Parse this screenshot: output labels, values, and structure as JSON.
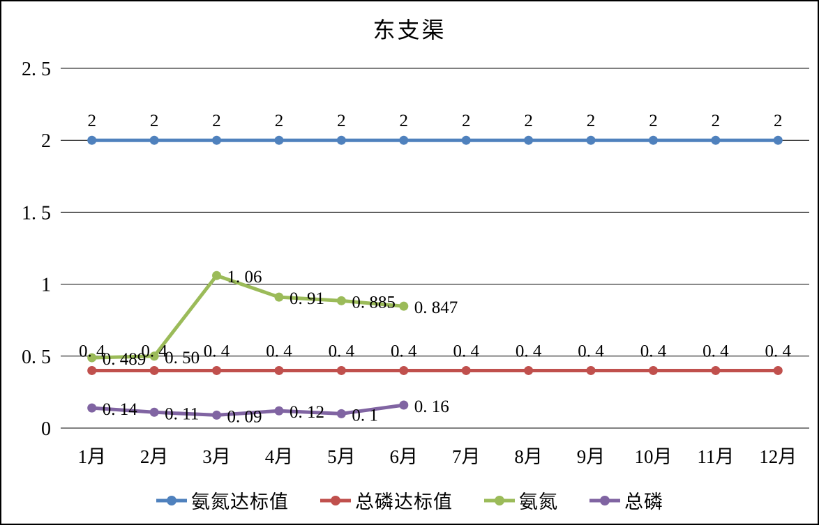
{
  "chart_data": {
    "type": "line",
    "title": "东支渠",
    "categories": [
      "1月",
      "2月",
      "3月",
      "4月",
      "5月",
      "6月",
      "7月",
      "8月",
      "9月",
      "10月",
      "11月",
      "12月"
    ],
    "y_ticks": [
      0,
      0.5,
      1,
      1.5,
      2,
      2.5
    ],
    "ylim": [
      0,
      2.5
    ],
    "grid": true,
    "legend_position": "bottom",
    "series": [
      {
        "name": "氨氮达标值",
        "color": "#4F81BD",
        "label_placement": "above",
        "values": [
          2,
          2,
          2,
          2,
          2,
          2,
          2,
          2,
          2,
          2,
          2,
          2
        ],
        "labels": [
          "2",
          "2",
          "2",
          "2",
          "2",
          "2",
          "2",
          "2",
          "2",
          "2",
          "2",
          "2"
        ]
      },
      {
        "name": "总磷达标值",
        "color": "#C0504D",
        "label_placement": "above",
        "values": [
          0.4,
          0.4,
          0.4,
          0.4,
          0.4,
          0.4,
          0.4,
          0.4,
          0.4,
          0.4,
          0.4,
          0.4
        ],
        "labels": [
          "0.4",
          "0.4",
          "0.4",
          "0.4",
          "0.4",
          "0.4",
          "0.4",
          "0.4",
          "0.4",
          "0.4",
          "0.4",
          "0.4"
        ]
      },
      {
        "name": "氨氮",
        "color": "#9BBB59",
        "label_placement": "right",
        "values": [
          0.489,
          0.5,
          1.06,
          0.91,
          0.885,
          0.847
        ],
        "labels": [
          "0.489",
          "0.50",
          "1.06",
          "0.91",
          "0.885",
          "0.847"
        ]
      },
      {
        "name": "总磷",
        "color": "#8064A2",
        "label_placement": "right",
        "values": [
          0.14,
          0.11,
          0.09,
          0.12,
          0.1,
          0.16
        ],
        "labels": [
          "0.14",
          "0.11",
          "0.09",
          "0.12",
          "0.1",
          "0.16"
        ]
      }
    ]
  }
}
